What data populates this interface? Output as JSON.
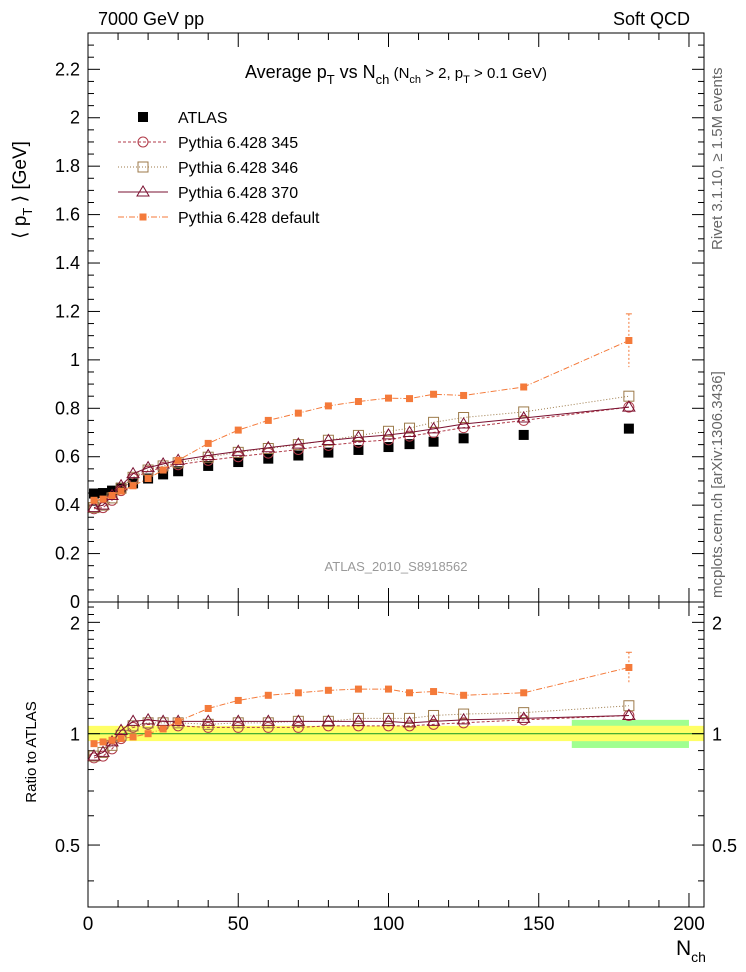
{
  "header": {
    "energy_label": "7000 GeV pp",
    "process_label": "Soft QCD"
  },
  "side_labels": {
    "rivet": "Rivet 3.1.10, ≥ 1.5M events",
    "mcplots": "mcplots.cern.ch [arXiv:1306.3436]"
  },
  "colors": {
    "atlas": "#000000",
    "tune345": "#b03a48",
    "tune346": "#9c7a4a",
    "tune370": "#7a1030",
    "default": "#f47a3a",
    "band_inner": "#ffff66",
    "band_outer": "#a0ff90",
    "ref_line": "#2ea32e"
  },
  "chart_data": [
    {
      "id": "main",
      "type": "scatter",
      "title": "Average p_T vs N_ch (N_ch > 2, p_T > 0.1 GeV)",
      "title_parts": {
        "main": "Average p",
        "sub1": "T",
        "vs": " vs N",
        "sub2": "ch",
        "cond1": " (N",
        "cond_sub1": "ch",
        "cond2": " > 2, p",
        "cond_sub2": "T",
        "cond3": " > 0.1 GeV)"
      },
      "ylabel": "⟨ p_T ⟩ [GeV]",
      "ylabel_parts": {
        "pre": "⟨ p",
        "sub": "T",
        "post": " ⟩ [GeV]"
      },
      "watermark": "ATLAS_2010_S8918562",
      "xlim": [
        0,
        205
      ],
      "ylim": [
        0,
        2.35
      ],
      "yticks": [
        0,
        0.2,
        0.4,
        0.6,
        0.8,
        1,
        1.2,
        1.4,
        1.6,
        1.8,
        2,
        2.2
      ],
      "ytick_labels": [
        "0",
        "0.2",
        "0.4",
        "0.6",
        "0.8",
        "1",
        "1.2",
        "1.4",
        "1.6",
        "1.8",
        "2",
        "2.2"
      ],
      "legend_position": "top-left",
      "series": [
        {
          "name": "ATLAS",
          "style": "data",
          "x": [
            2,
            5,
            8,
            11,
            15,
            20,
            25,
            30,
            40,
            50,
            60,
            70,
            80,
            90,
            100,
            107,
            115,
            125,
            145,
            180
          ],
          "y": [
            0.448,
            0.45,
            0.46,
            0.472,
            0.49,
            0.51,
            0.527,
            0.54,
            0.562,
            0.578,
            0.592,
            0.605,
            0.617,
            0.628,
            0.64,
            0.652,
            0.662,
            0.676,
            0.69,
            0.716
          ]
        },
        {
          "name": "Pythia 6.428 345",
          "style": "tune345",
          "x": [
            2,
            5,
            8,
            11,
            15,
            20,
            25,
            30,
            40,
            50,
            60,
            70,
            80,
            90,
            100,
            107,
            115,
            125,
            145,
            180
          ],
          "y": [
            0.385,
            0.39,
            0.42,
            0.46,
            0.51,
            0.54,
            0.555,
            0.567,
            0.585,
            0.6,
            0.615,
            0.63,
            0.647,
            0.66,
            0.67,
            0.685,
            0.7,
            0.72,
            0.75,
            0.805
          ]
        },
        {
          "name": "Pythia 6.428 346",
          "style": "tune346",
          "x": [
            2,
            5,
            8,
            11,
            15,
            20,
            25,
            30,
            40,
            50,
            60,
            70,
            80,
            90,
            100,
            107,
            115,
            125,
            145,
            180
          ],
          "y": [
            0.39,
            0.4,
            0.43,
            0.47,
            0.515,
            0.545,
            0.562,
            0.575,
            0.598,
            0.618,
            0.634,
            0.65,
            0.668,
            0.688,
            0.705,
            0.718,
            0.742,
            0.762,
            0.785,
            0.85
          ]
        },
        {
          "name": "Pythia 6.428 370",
          "style": "tune370",
          "x": [
            2,
            5,
            8,
            11,
            15,
            20,
            25,
            30,
            40,
            50,
            60,
            70,
            80,
            90,
            100,
            107,
            115,
            125,
            145,
            180
          ],
          "y": [
            0.39,
            0.4,
            0.44,
            0.48,
            0.53,
            0.555,
            0.57,
            0.585,
            0.605,
            0.622,
            0.637,
            0.652,
            0.667,
            0.68,
            0.69,
            0.7,
            0.715,
            0.735,
            0.76,
            0.805
          ]
        },
        {
          "name": "Pythia 6.428 default",
          "style": "default",
          "x": [
            2,
            5,
            8,
            11,
            15,
            20,
            25,
            30,
            40,
            50,
            60,
            70,
            80,
            90,
            100,
            107,
            115,
            125,
            145,
            180
          ],
          "y": [
            0.42,
            0.425,
            0.44,
            0.458,
            0.48,
            0.51,
            0.545,
            0.585,
            0.655,
            0.71,
            0.75,
            0.78,
            0.81,
            0.828,
            0.842,
            0.84,
            0.858,
            0.853,
            0.888,
            1.08
          ]
        }
      ]
    },
    {
      "id": "ratio",
      "type": "scatter",
      "ylabel": "Ratio to ATLAS",
      "xlabel": "N_ch",
      "xlabel_parts": {
        "main": "N",
        "sub": "ch"
      },
      "xlim": [
        0,
        205
      ],
      "ylim": [
        0.34,
        2.27
      ],
      "yticks": [
        0.5,
        1,
        2
      ],
      "ytick_labels": [
        "0.5",
        "1",
        "2"
      ],
      "xticks": [
        0,
        50,
        100,
        150,
        200
      ],
      "xtick_labels": [
        "0",
        "50",
        "100",
        "150",
        "200"
      ],
      "reference": 1,
      "series": [
        {
          "name": "Pythia 6.428 345",
          "style": "tune345",
          "x": [
            2,
            5,
            8,
            11,
            15,
            20,
            25,
            30,
            40,
            50,
            60,
            70,
            80,
            90,
            100,
            107,
            115,
            125,
            145,
            180
          ],
          "y": [
            0.86,
            0.87,
            0.91,
            0.97,
            1.04,
            1.06,
            1.05,
            1.05,
            1.04,
            1.04,
            1.04,
            1.04,
            1.05,
            1.05,
            1.05,
            1.05,
            1.06,
            1.07,
            1.09,
            1.12
          ]
        },
        {
          "name": "Pythia 6.428 346",
          "style": "tune346",
          "x": [
            2,
            5,
            8,
            11,
            15,
            20,
            25,
            30,
            40,
            50,
            60,
            70,
            80,
            90,
            100,
            107,
            115,
            125,
            145,
            180
          ],
          "y": [
            0.87,
            0.89,
            0.93,
            0.99,
            1.05,
            1.07,
            1.07,
            1.07,
            1.06,
            1.07,
            1.07,
            1.08,
            1.08,
            1.1,
            1.1,
            1.1,
            1.12,
            1.13,
            1.14,
            1.19
          ]
        },
        {
          "name": "Pythia 6.428 370",
          "style": "tune370",
          "x": [
            2,
            5,
            8,
            11,
            15,
            20,
            25,
            30,
            40,
            50,
            60,
            70,
            80,
            90,
            100,
            107,
            115,
            125,
            145,
            180
          ],
          "y": [
            0.87,
            0.89,
            0.95,
            1.02,
            1.08,
            1.09,
            1.08,
            1.08,
            1.08,
            1.08,
            1.08,
            1.08,
            1.08,
            1.08,
            1.08,
            1.07,
            1.08,
            1.09,
            1.1,
            1.12
          ]
        },
        {
          "name": "Pythia 6.428 default",
          "style": "default",
          "x": [
            2,
            5,
            8,
            11,
            15,
            20,
            25,
            30,
            40,
            50,
            60,
            70,
            80,
            90,
            100,
            107,
            115,
            125,
            145,
            180
          ],
          "y": [
            0.94,
            0.95,
            0.96,
            0.97,
            0.98,
            1.0,
            1.03,
            1.08,
            1.17,
            1.23,
            1.27,
            1.29,
            1.31,
            1.32,
            1.32,
            1.29,
            1.3,
            1.27,
            1.29,
            1.51
          ]
        }
      ]
    }
  ]
}
